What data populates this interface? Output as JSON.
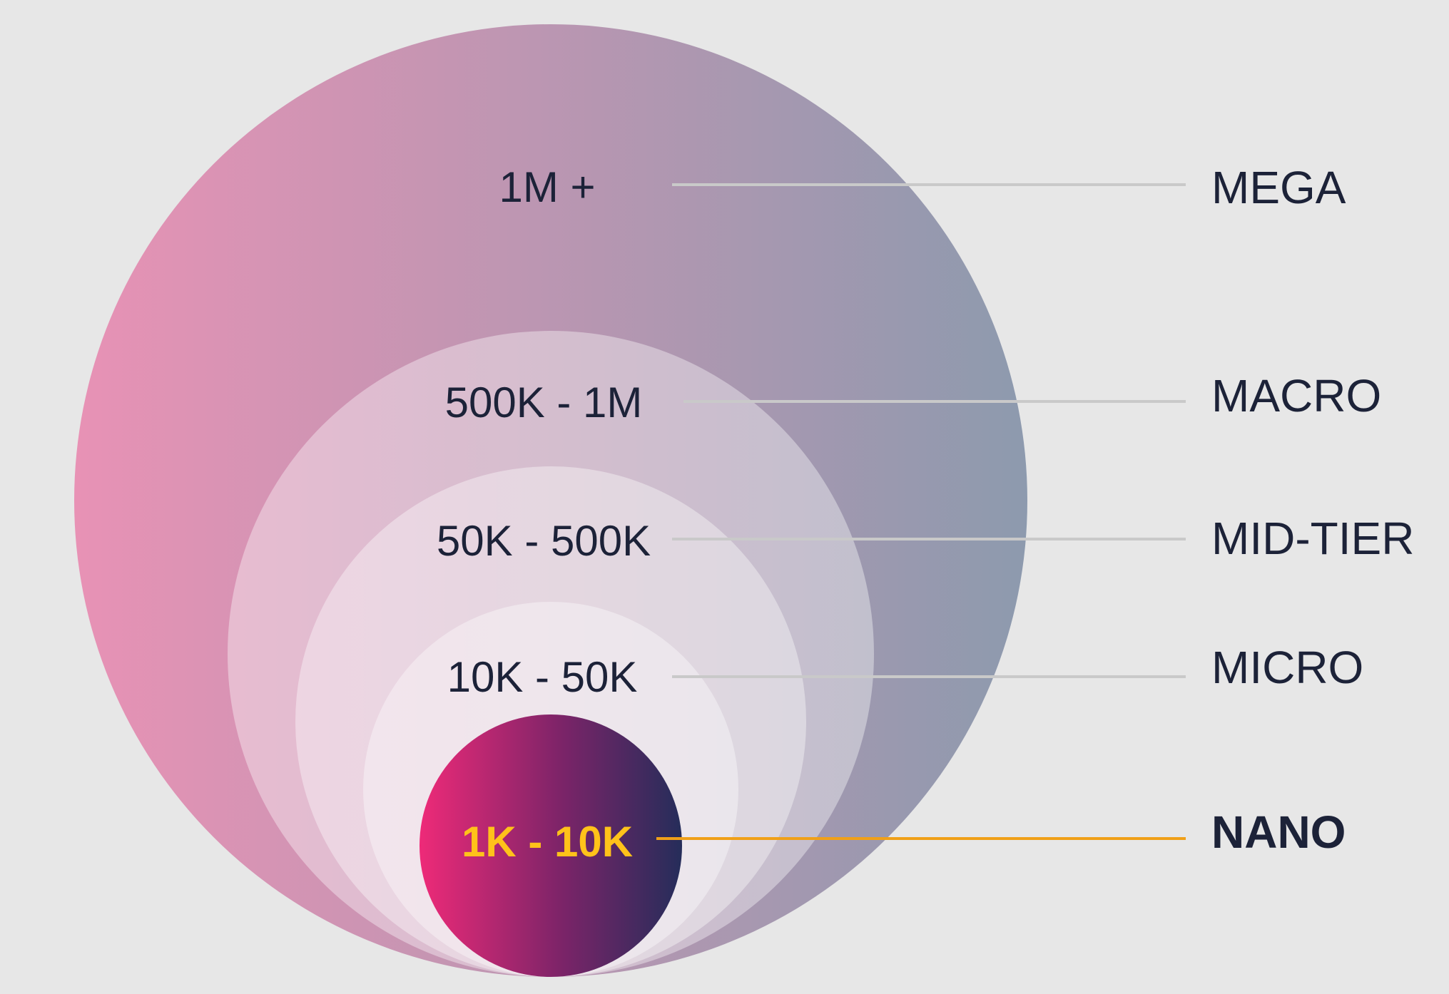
{
  "tiers": [
    {
      "range": "1M +",
      "name": "MEGA",
      "highlighted": false
    },
    {
      "range": "500K - 1M",
      "name": "MACRO",
      "highlighted": false
    },
    {
      "range": "50K - 500K",
      "name": "MID-TIER",
      "highlighted": false
    },
    {
      "range": "10K - 50K",
      "name": "MICRO",
      "highlighted": false
    },
    {
      "range": "1K - 10K",
      "name": "NANO",
      "highlighted": true
    }
  ],
  "colors": {
    "background": "#e7e7e7",
    "text": "#1c2238",
    "highlight_text": "#ffc21a",
    "connector": "#c9c9c9",
    "highlight_connector": "#f0a018",
    "mega_gradient": [
      "#e892b5",
      "#8d9aae"
    ],
    "nano_gradient": [
      "#ee2a78",
      "#252d5a"
    ]
  }
}
